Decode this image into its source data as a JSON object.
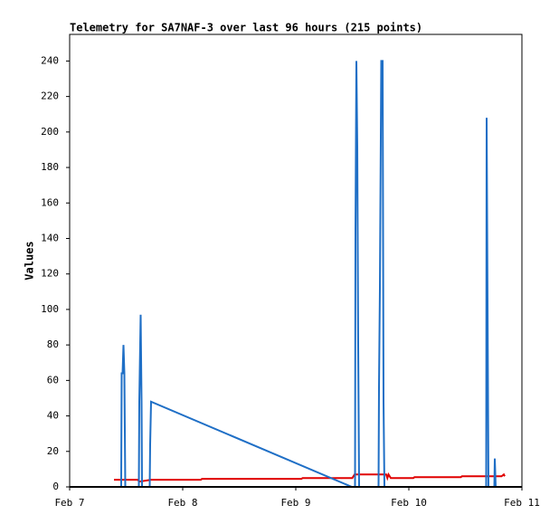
{
  "chart_data": {
    "type": "line",
    "title": "Telemetry for SA7NAF-3 over last 96 hours (215 points)",
    "y_label": "Values",
    "xlim": [
      7,
      11
    ],
    "xticks": [
      {
        "value": 7,
        "label": "Feb 7"
      },
      {
        "value": 8,
        "label": "Feb 8"
      },
      {
        "value": 9,
        "label": "Feb 9"
      },
      {
        "value": 10,
        "label": "Feb 10"
      },
      {
        "value": 11,
        "label": "Feb 11"
      }
    ],
    "ylim": [
      0,
      255
    ],
    "yticks": [
      0,
      20,
      40,
      60,
      80,
      100,
      120,
      140,
      160,
      180,
      200,
      220,
      240
    ],
    "series": [
      {
        "color": "#1f6fc6",
        "x": [
          7.392,
          7.456,
          7.46,
          7.468,
          7.476,
          7.484,
          7.492,
          7.612,
          7.616,
          7.628,
          7.636,
          7.64,
          7.708,
          7.712,
          7.72,
          9.496,
          9.524,
          9.528,
          9.536,
          9.544,
          9.552,
          9.56,
          9.732,
          9.736,
          9.744,
          9.756,
          9.768,
          9.776,
          9.784,
          10.684,
          10.688,
          10.696,
          10.704,
          10.756,
          10.76,
          10.768,
          10.848
        ],
        "values": [
          0,
          0,
          64,
          64,
          80,
          64,
          0,
          0,
          48,
          97,
          48,
          0,
          0,
          24,
          48,
          0,
          0,
          145,
          240,
          192,
          80,
          0,
          0,
          56,
          112,
          240,
          240,
          48,
          0,
          0,
          208,
          104,
          0,
          0,
          16,
          0,
          0
        ]
      },
      {
        "color": "#e00000",
        "x": [
          7.392,
          7.6,
          7.62,
          7.72,
          8.16,
          8.17,
          9.05,
          9.06,
          9.5,
          9.52,
          9.8,
          9.81,
          9.82,
          9.84,
          10.04,
          10.05,
          10.46,
          10.47,
          10.82,
          10.84,
          10.848
        ],
        "values": [
          4,
          4,
          3,
          4,
          4,
          4.5,
          4.5,
          5,
          5,
          7,
          7,
          5,
          7,
          5,
          5,
          5.5,
          5.5,
          6,
          6,
          7,
          6
        ]
      }
    ]
  }
}
